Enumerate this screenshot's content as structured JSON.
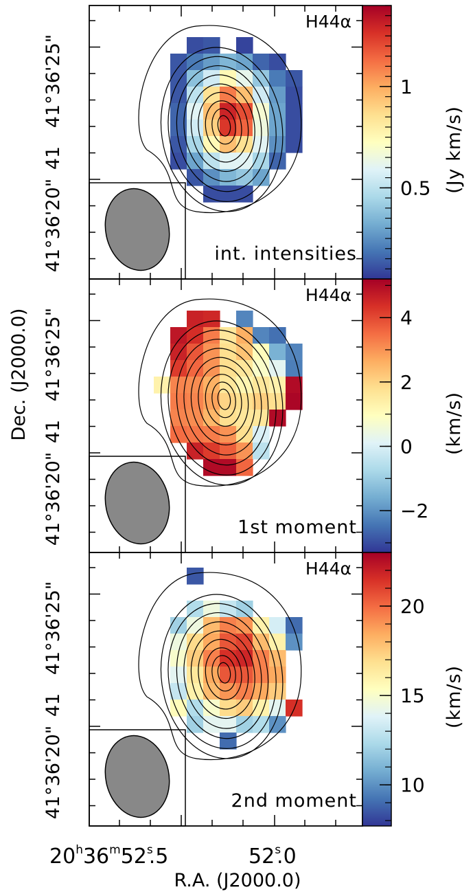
{
  "figure": {
    "ylabel": "Dec. (J2000.0)",
    "xlabel": "R.A. (J2000.0)",
    "xticks": [
      {
        "label": "20h36m52.5s",
        "main": "20",
        "h": "h",
        "m1": "36",
        "m": "m",
        "s1": "52",
        "s": "s",
        "s2": ".5"
      },
      {
        "label": "52.0s",
        "main": "52",
        "s": "s",
        "s2": ".0"
      }
    ],
    "yticks": [
      {
        "label": "41°36'20\""
      },
      {
        "label": "41°36'25\""
      },
      {
        "label": "41"
      }
    ]
  },
  "chart_data": [
    {
      "type": "heatmap",
      "line": "H44α",
      "panel_label": "int. intensities",
      "colorbar_label": "(Jy km/s)",
      "colorbar_ticks": [
        {
          "value": 0.5,
          "label": "0.5"
        },
        {
          "value": 1.0,
          "label": "1"
        }
      ],
      "vmin": 0.05,
      "vmax": 1.4,
      "colormap": "RdYlBu_r",
      "grid_origin_col": 0,
      "grid_origin_row": 0,
      "grid": [
        [
          null,
          null,
          null,
          null,
          null,
          null,
          null,
          null,
          null,
          null,
          null
        ],
        [
          null,
          null,
          null,
          0.1,
          0.12,
          null,
          0.08,
          null,
          null,
          null,
          null
        ],
        [
          null,
          null,
          0.12,
          0.2,
          0.28,
          0.35,
          0.3,
          0.15,
          0.1,
          null,
          null
        ],
        [
          null,
          null,
          0.12,
          0.38,
          0.55,
          0.75,
          0.62,
          0.4,
          0.2,
          0.12,
          null
        ],
        [
          null,
          null,
          0.12,
          0.5,
          0.85,
          1.1,
          0.95,
          0.55,
          0.28,
          0.1,
          null
        ],
        [
          null,
          null,
          0.15,
          0.6,
          0.95,
          1.3,
          1.2,
          0.68,
          0.3,
          0.1,
          null
        ],
        [
          null,
          null,
          0.15,
          0.55,
          0.9,
          1.25,
          1.15,
          0.65,
          0.3,
          0.1,
          null
        ],
        [
          null,
          null,
          0.12,
          0.45,
          0.75,
          0.95,
          0.85,
          0.6,
          0.25,
          0.1,
          null
        ],
        [
          null,
          null,
          0.1,
          0.3,
          0.5,
          0.6,
          0.6,
          0.45,
          0.15,
          null,
          null
        ],
        [
          null,
          null,
          null,
          0.12,
          0.25,
          0.35,
          0.4,
          0.3,
          null,
          null,
          null
        ],
        [
          null,
          null,
          null,
          null,
          0.1,
          0.1,
          0.1,
          null,
          null,
          null,
          null
        ]
      ]
    },
    {
      "type": "heatmap",
      "line": "H44α",
      "panel_label": "1st moment",
      "colorbar_label": "(km/s)",
      "colorbar_ticks": [
        {
          "value": -2,
          "label": "−2"
        },
        {
          "value": 0,
          "label": "0"
        },
        {
          "value": 2,
          "label": "2"
        },
        {
          "value": 4,
          "label": "4"
        }
      ],
      "vmin": -3.3,
      "vmax": 5.2,
      "colormap": "RdYlBu_r",
      "grid": [
        [
          null,
          null,
          null,
          null,
          null,
          null,
          null,
          null,
          null,
          null,
          null
        ],
        [
          null,
          null,
          null,
          4.6,
          4.5,
          null,
          -2.2,
          null,
          null,
          null,
          null
        ],
        [
          null,
          null,
          4.8,
          4.4,
          3.3,
          1.6,
          2.6,
          -2.2,
          -2.5,
          null,
          null
        ],
        [
          null,
          null,
          4.6,
          3.8,
          3.0,
          1.8,
          2.3,
          1.0,
          -1.5,
          -2.2,
          null
        ],
        [
          null,
          null,
          4.2,
          3.6,
          3.0,
          1.8,
          1.6,
          0.8,
          0.2,
          -2.3,
          null
        ],
        [
          null,
          1.3,
          3.2,
          3.1,
          2.6,
          1.6,
          1.2,
          1.6,
          1.3,
          5.0,
          null
        ],
        [
          null,
          null,
          3.3,
          3.2,
          2.8,
          2.0,
          1.8,
          2.1,
          1.8,
          5.1,
          null
        ],
        [
          null,
          null,
          3.2,
          3.1,
          2.5,
          1.8,
          1.6,
          1.6,
          5.0,
          null,
          null
        ],
        [
          null,
          null,
          3.5,
          3.4,
          3.3,
          3.0,
          1.8,
          0.0,
          null,
          null,
          null
        ],
        [
          null,
          null,
          null,
          4.6,
          4.2,
          3.7,
          3.0,
          -0.5,
          null,
          null,
          null
        ],
        [
          null,
          null,
          null,
          null,
          5.0,
          5.0,
          3.6,
          null,
          null,
          null,
          null
        ]
      ]
    },
    {
      "type": "heatmap",
      "line": "H44α",
      "panel_label": "2nd moment",
      "colorbar_label": "(km/s)",
      "colorbar_ticks": [
        {
          "value": 10,
          "label": "10"
        },
        {
          "value": 15,
          "label": "15"
        },
        {
          "value": 20,
          "label": "20"
        }
      ],
      "vmin": 7.7,
      "vmax": 23.0,
      "colormap": "RdYlBu_r",
      "grid": [
        [
          null,
          null,
          null,
          8.5,
          null,
          null,
          null,
          null,
          null,
          null,
          null
        ],
        [
          null,
          null,
          null,
          null,
          null,
          null,
          null,
          null,
          null,
          null,
          null
        ],
        [
          null,
          null,
          null,
          12.5,
          14.5,
          13.0,
          12.0,
          null,
          null,
          null,
          null
        ],
        [
          null,
          null,
          12.0,
          14.5,
          18.0,
          19.5,
          19.0,
          16.0,
          13.5,
          9.0,
          null
        ],
        [
          null,
          null,
          14.5,
          17.0,
          18.5,
          20.5,
          21.0,
          18.0,
          16.0,
          10.0,
          null
        ],
        [
          null,
          null,
          15.0,
          17.5,
          19.5,
          21.5,
          21.8,
          19.5,
          18.0,
          null,
          null
        ],
        [
          null,
          null,
          14.0,
          16.5,
          18.5,
          20.5,
          20.5,
          19.5,
          18.5,
          null,
          null
        ],
        [
          null,
          null,
          13.0,
          16.0,
          18.0,
          19.0,
          19.5,
          18.5,
          17.5,
          null,
          null
        ],
        [
          null,
          null,
          15.5,
          12.5,
          15.0,
          17.0,
          17.5,
          16.0,
          14.0,
          21.5,
          null
        ],
        [
          null,
          null,
          null,
          12.0,
          14.0,
          14.0,
          12.0,
          12.5,
          10.0,
          null,
          null
        ],
        [
          null,
          null,
          null,
          null,
          null,
          9.0,
          null,
          null,
          null,
          null,
          null
        ]
      ]
    }
  ]
}
